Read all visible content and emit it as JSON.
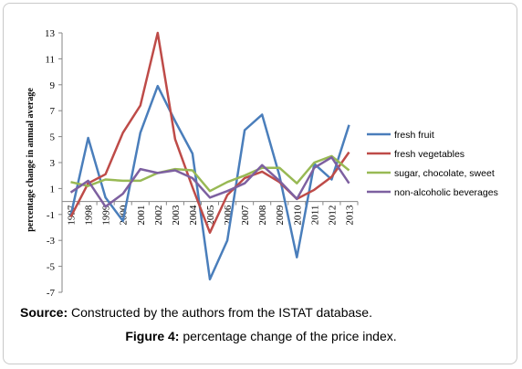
{
  "chart_data": {
    "type": "line",
    "title": "",
    "xlabel": "",
    "ylabel": "percentage change in annual average",
    "ylim": [
      -7,
      13
    ],
    "yticks": [
      -7,
      -5,
      -3,
      -1,
      1,
      3,
      5,
      7,
      9,
      11,
      13
    ],
    "x": [
      "1997",
      "1998",
      "1999",
      "2000",
      "2001",
      "2002",
      "2003",
      "2004",
      "2005",
      "2006",
      "2007",
      "2008",
      "2009",
      "2010",
      "2011",
      "2012",
      "2013"
    ],
    "grid": false,
    "legend_position": "right",
    "series": [
      {
        "name": "fresh fruit",
        "color": "#4a7ebb",
        "values": [
          -1.1,
          4.9,
          0.3,
          -1.5,
          5.3,
          8.9,
          6.2,
          3.7,
          -6.0,
          -3.0,
          5.5,
          6.7,
          2.0,
          -4.3,
          2.9,
          1.7,
          5.9
        ]
      },
      {
        "name": "fresh vegetables",
        "color": "#be4b48",
        "values": [
          -1.2,
          1.4,
          2.1,
          5.3,
          7.4,
          13.0,
          4.8,
          1.1,
          -2.4,
          0.5,
          1.8,
          2.3,
          1.5,
          0.2,
          0.9,
          1.9,
          3.8
        ]
      },
      {
        "name": "sugar, chocolate, sweet",
        "color": "#98b954",
        "values": [
          1.5,
          1.2,
          1.7,
          1.6,
          1.6,
          2.2,
          2.5,
          2.4,
          0.8,
          1.5,
          2.0,
          2.6,
          2.6,
          1.4,
          3.0,
          3.5,
          2.4
        ]
      },
      {
        "name": "non-alcoholic beverages",
        "color": "#7d60a0",
        "values": [
          0.7,
          1.6,
          -0.4,
          0.6,
          2.5,
          2.2,
          2.4,
          1.8,
          0.3,
          0.8,
          1.4,
          2.8,
          1.6,
          0.2,
          2.6,
          3.4,
          1.4
        ]
      }
    ]
  },
  "source": {
    "label": "Source:",
    "text": " Constructed by the authors from the ISTAT database."
  },
  "caption": {
    "label": "Figure 4:",
    "text": " percentage change of the price index."
  }
}
